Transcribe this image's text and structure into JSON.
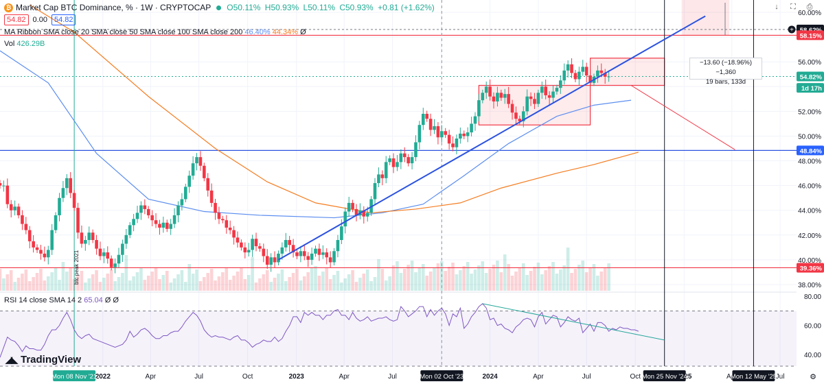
{
  "header": {
    "symbol_icon": "bitcoin-icon",
    "title": "Market Cap BTC Dominance, % · 1W · CRYPTOCAP",
    "open": "O50.11%",
    "high": "H50.93%",
    "low": "L50.11%",
    "close": "C50.93%",
    "change": "+0.81 (+1.62%)",
    "bid": "54.82",
    "spread": "0.00",
    "ask": "54.82",
    "ma_label": "MA Ribbon",
    "ma_params": "SMA close 20 SMA close 50 SMA close 100 SMA close 200",
    "ma_v1": "46.40%",
    "ma_v2": "44.34%",
    "vol_label": "Vol",
    "vol_value": "426.29B",
    "rsi_label": "RSI",
    "rsi_params": "14 close SMA 14 2",
    "rsi_value": "65.04",
    "logo": "TradingView"
  },
  "measure": {
    "line1": "−13.60 (−18.96%) −1,360",
    "line2": "19 bars, 133d"
  },
  "chart_data": {
    "type": "candlestick",
    "title": "Market Cap BTC Dominance, % · 1W · CRYPTOCAP",
    "y_ticks": [
      "60.00%",
      "58.00%",
      "56.00%",
      "54.00%",
      "52.00%",
      "50.00%",
      "48.00%",
      "46.00%",
      "44.00%",
      "42.00%",
      "40.00%",
      "38.00%"
    ],
    "y_range": [
      37.5,
      61.0
    ],
    "rsi_ticks": [
      "80.00",
      "60.00",
      "40.00"
    ],
    "rsi_range": [
      32,
      82
    ],
    "rsi_band": [
      30,
      70
    ],
    "x_ticks": [
      "2022",
      "Apr",
      "Jul",
      "Oct",
      "2023",
      "Apr",
      "Jul",
      "Oct",
      "2024",
      "Apr",
      "Jul",
      "Oct",
      "2025",
      "Apr",
      "Jul"
    ],
    "x_range": [
      "2021-06-21",
      "2025-08-01"
    ],
    "x_highlight_labels": [
      {
        "date": "2021-11-08",
        "label": "Mon 08 Nov '21"
      },
      {
        "date": "2023-10-02",
        "label": "Mon 02 Oct '23"
      },
      {
        "date": "2024-11-25",
        "label": "Mon 25 Nov '24"
      },
      {
        "date": "2025-05-12",
        "label": "Mon 12 May '25"
      }
    ],
    "price_labels": [
      {
        "value": 58.62,
        "text": "58.62%",
        "color": "#131722"
      },
      {
        "value": 58.15,
        "text": "58.15%",
        "color": "#f23645"
      },
      {
        "value": 54.82,
        "text": "54.82%",
        "color": "#22ab94"
      },
      {
        "value": 53.9,
        "text": "1d 17h",
        "color": "#22ab94"
      },
      {
        "value": 48.84,
        "text": "48.84%",
        "color": "#2962ff"
      },
      {
        "value": 39.36,
        "text": "39.36%",
        "color": "#f23645"
      }
    ],
    "annotations": [
      {
        "date": "2021-11-08",
        "text": "btc peak 2021"
      }
    ],
    "colors": {
      "up": "#22ab94",
      "down": "#f23645",
      "sma_fast": "#5b8def",
      "sma_slow": "#f57c1f",
      "trend": "#2b52e0"
    },
    "candles_close": [
      46.0,
      46.0,
      44.5,
      44.0,
      44.3,
      43.6,
      42.9,
      42.4,
      41.5,
      41.0,
      40.8,
      40.5,
      40.2,
      40.8,
      42.4,
      43.6,
      45.0,
      45.8,
      46.6,
      45.4,
      44.2,
      42.2,
      41.3,
      41.6,
      42.2,
      41.6,
      40.9,
      40.3,
      40.6,
      40.1,
      39.4,
      39.7,
      40.4,
      41.3,
      42.0,
      42.8,
      43.3,
      43.8,
      44.4,
      44.1,
      43.6,
      43.2,
      42.9,
      42.6,
      43.0,
      42.5,
      42.9,
      43.6,
      44.4,
      44.9,
      45.9,
      46.8,
      47.8,
      48.3,
      47.6,
      46.6,
      45.6,
      44.6,
      43.8,
      43.3,
      43.2,
      42.6,
      42.4,
      41.8,
      41.4,
      41.0,
      40.6,
      40.8,
      41.7,
      41.1,
      40.9,
      40.3,
      39.6,
      40.2,
      39.8,
      40.5,
      41.0,
      41.6,
      41.2,
      40.6,
      40.3,
      40.7,
      40.3,
      40.0,
      40.5,
      40.9,
      40.4,
      40.6,
      40.2,
      39.8,
      40.7,
      41.6,
      42.7,
      43.9,
      44.6,
      44.1,
      43.6,
      44.0,
      43.5,
      43.8,
      44.9,
      46.2,
      46.9,
      46.6,
      47.9,
      48.2,
      47.5,
      47.9,
      48.6,
      48.3,
      47.8,
      48.3,
      49.5,
      50.9,
      51.8,
      51.4,
      50.5,
      50.8,
      49.9,
      50.4,
      50.1,
      49.4,
      49.1,
      49.8,
      50.2,
      50.0,
      50.3,
      51.0,
      51.6,
      52.9,
      53.5,
      54.0,
      53.2,
      52.8,
      53.5,
      53.1,
      53.4,
      52.6,
      51.9,
      51.4,
      51.2,
      52.0,
      53.2,
      53.0,
      52.6,
      53.5,
      54.0,
      53.3,
      53.1,
      53.6,
      53.9,
      54.5,
      55.3,
      55.8,
      55.1,
      54.6,
      55.2,
      55.6,
      54.9,
      54.3,
      54.8,
      55.3,
      55.1,
      54.8,
      54.82
    ],
    "ma_fast": [
      [
        0,
        56.9
      ],
      [
        13,
        54.3
      ],
      [
        26,
        48.6
      ],
      [
        40,
        44.9
      ],
      [
        55,
        43.9
      ],
      [
        70,
        43.6
      ],
      [
        90,
        43.4
      ],
      [
        103,
        43.8
      ],
      [
        114,
        44.5
      ],
      [
        125,
        46.8
      ],
      [
        137,
        49.4
      ],
      [
        150,
        51.6
      ],
      [
        160,
        52.5
      ],
      [
        170,
        52.9
      ]
    ],
    "ma_slow": [
      [
        8,
        60.6
      ],
      [
        20,
        58.4
      ],
      [
        40,
        53.2
      ],
      [
        58,
        49.0
      ],
      [
        72,
        46.3
      ],
      [
        85,
        44.6
      ],
      [
        100,
        43.8
      ],
      [
        112,
        44.1
      ],
      [
        124,
        44.6
      ],
      [
        135,
        45.8
      ],
      [
        150,
        47.0
      ],
      [
        160,
        47.7
      ],
      [
        172,
        48.7
      ]
    ],
    "trendlines": [
      {
        "from": [
          75,
          40.0
        ],
        "to": [
          190,
          59.7
        ],
        "color": "#2b52e0"
      },
      {
        "from": [
          170,
          54.1
        ],
        "to": [
          198,
          48.9
        ],
        "color": "#f23645"
      }
    ],
    "rectangles": [
      {
        "x": [
          129,
          159
        ],
        "y": [
          50.9,
          54.1
        ],
        "color": "#f23645"
      },
      {
        "x": [
          159,
          179
        ],
        "y": [
          54.1,
          56.3
        ],
        "color": "#f23645"
      }
    ],
    "rsi_values": [
      38,
      45,
      52,
      50,
      49,
      46,
      42,
      46,
      44,
      44,
      43,
      43,
      47,
      53,
      57,
      57,
      60,
      65,
      69,
      64,
      57,
      53,
      51,
      53,
      54,
      51,
      50,
      49,
      48,
      47,
      46,
      45,
      46,
      47,
      50,
      56,
      52,
      54,
      57,
      58,
      56,
      53,
      51,
      51,
      53,
      53,
      55,
      56,
      56,
      59,
      63,
      66,
      69,
      67,
      63,
      57,
      54,
      52,
      53,
      52,
      52,
      51,
      50,
      52,
      53,
      50,
      50,
      48,
      45,
      47,
      48,
      50,
      49,
      49,
      52,
      49,
      51,
      56,
      60,
      66,
      66,
      62,
      69,
      67,
      69,
      67,
      67,
      64,
      67,
      67,
      70,
      71,
      67,
      67,
      64,
      69,
      65,
      63,
      64,
      66,
      63,
      64,
      65,
      65,
      66,
      64,
      63,
      64,
      73,
      70,
      66,
      68,
      70,
      73,
      73,
      66,
      71,
      67,
      70,
      72,
      68,
      60,
      68,
      66,
      72,
      58,
      61,
      66,
      69,
      73,
      75,
      72,
      64,
      65,
      60,
      61,
      58,
      57,
      55,
      59,
      61,
      64,
      65,
      64,
      59,
      66,
      69,
      61,
      64,
      67,
      66,
      59,
      62,
      66,
      64,
      63,
      65,
      55,
      58,
      61,
      56,
      62,
      62,
      60,
      56,
      58,
      57,
      59,
      58,
      58,
      57,
      57,
      56
    ]
  }
}
